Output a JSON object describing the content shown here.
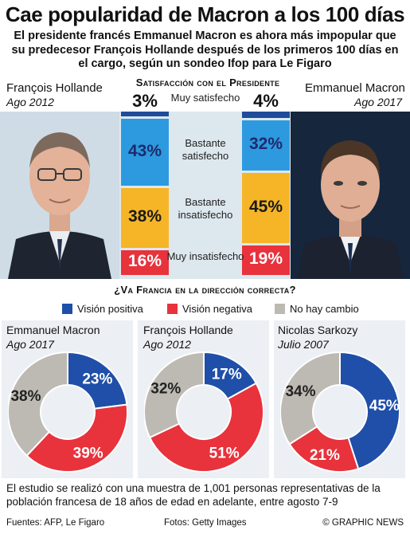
{
  "title": "Cae popularidad de Macron a los 100 días",
  "subtitle": "El presidente francés Emmanuel Macron es ahora más impopular que su predecesor François Hollande después de los primeros 100 días en el cargo, según un sondeo Ifop para Le Figaro",
  "colors": {
    "positive": "#1f4fa8",
    "negative": "#e8323c",
    "nochange": "#bdbab3",
    "very_satisfied": "#1e4c9a",
    "satisfied": "#2d9ae0",
    "unsatisfied": "#f5b526",
    "very_unsatisfied": "#e8323c"
  },
  "chart_data": [
    {
      "type": "bar",
      "title": "Satisfacción con el Presidente",
      "categories": [
        "Muy satisfecho",
        "Bastante satisfecho",
        "Bastante insatisfecho",
        "Muy insatisfecho"
      ],
      "series": [
        {
          "name": "François Hollande",
          "date": "Ago 2012",
          "values": [
            3,
            43,
            38,
            16
          ]
        },
        {
          "name": "Emmanuel Macron",
          "date": "Ago 2017",
          "values": [
            4,
            32,
            45,
            19
          ]
        }
      ],
      "value_labels": [
        "3%",
        "43%",
        "38%",
        "16%",
        "4%",
        "32%",
        "45%",
        "19%"
      ]
    },
    {
      "type": "pie",
      "title": "¿Va Francia en la dirección correcta?",
      "legend": [
        "Visión positiva",
        "Visión negativa",
        "No hay cambio"
      ],
      "series": [
        {
          "name": "Emmanuel Macron",
          "date": "Ago 2017",
          "values": [
            23,
            39,
            38
          ],
          "labels": [
            "23%",
            "39%",
            "38%"
          ]
        },
        {
          "name": "François Hollande",
          "date": "Ago 2012",
          "values": [
            17,
            51,
            32
          ],
          "labels": [
            "17%",
            "51%",
            "32%"
          ]
        },
        {
          "name": "Nicolas Sarkozy",
          "date": "Julio 2007",
          "values": [
            45,
            21,
            34
          ],
          "labels": [
            "45%",
            "21%",
            "34%"
          ]
        }
      ]
    }
  ],
  "note": "El estudio se realizó con una muestra de 1,001 personas representativas de la población francesa de 18 años de edad en adelante, entre agosto 7-9",
  "footer": {
    "sources": "Fuentes: AFP, Le Figaro",
    "photos": "Fotos: Getty Images",
    "credit": "© GRAPHIC NEWS"
  }
}
